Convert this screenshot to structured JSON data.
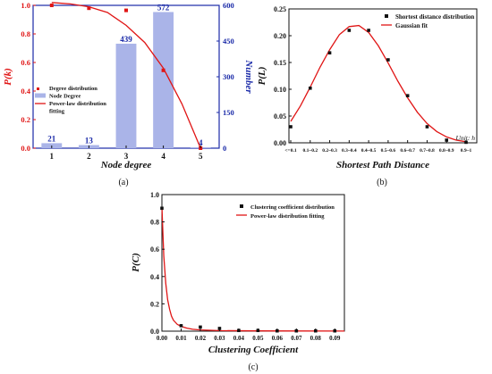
{
  "figure": {
    "panel_labels": [
      "(a)",
      "(b)",
      "(c)"
    ]
  },
  "chart_data": [
    {
      "type": "bar",
      "id": "a",
      "xlabel": "Node degree",
      "ylabel_left": "P(k)",
      "ylabel_right": "Number",
      "categories": [
        "1",
        "2",
        "3",
        "4",
        "5"
      ],
      "ylim_left": [
        0,
        1.0
      ],
      "yticks_left": [
        "0.0",
        "0.2",
        "0.4",
        "0.6",
        "0.8",
        "1.0"
      ],
      "ylim_right": [
        0,
        600
      ],
      "yticks_right": [
        "0",
        "150",
        "300",
        "450",
        "600"
      ],
      "legend": [
        "Degree distribution",
        "Node Degree",
        "Power-law distribution",
        "fitting"
      ],
      "series": [
        {
          "name": "Node Degree",
          "kind": "bar",
          "axis": "right",
          "values": [
            21,
            13,
            439,
            572,
            4
          ],
          "color": "#aab4e8",
          "label_color": "#1a2aa8"
        },
        {
          "name": "Degree distribution",
          "kind": "scatter",
          "axis": "left",
          "x": [
            1,
            2,
            3,
            4,
            5
          ],
          "values": [
            1.0,
            0.98,
            0.965,
            0.545,
            0.0
          ],
          "color": "#e01515"
        },
        {
          "name": "Power-law distribution fitting",
          "kind": "line",
          "axis": "left",
          "x": [
            1,
            1.5,
            2,
            2.5,
            3,
            3.5,
            4,
            4.5,
            5
          ],
          "values": [
            1.02,
            1.01,
            0.99,
            0.95,
            0.86,
            0.74,
            0.56,
            0.31,
            0.0
          ],
          "color": "#e01515"
        }
      ]
    },
    {
      "type": "scatter",
      "id": "b",
      "xlabel": "Shortest Path Distance",
      "ylabel": "P(L)",
      "annotation": "Unit: h",
      "categories": [
        "<=0.1",
        "0.1~0.2",
        "0.2~0.3",
        "0.3~0.4",
        "0.4~0.5",
        "0.5~0.6",
        "0.6~0.7",
        "0.7~0.8",
        "0.8~0.9",
        "0.9~1"
      ],
      "ylim": [
        0,
        0.25
      ],
      "yticks": [
        "0.00",
        "0.05",
        "0.10",
        "0.15",
        "0.20",
        "0.25"
      ],
      "legend": [
        "Shortest distance distribution",
        "Gaussian fit"
      ],
      "series": [
        {
          "name": "Shortest distance distribution",
          "kind": "scatter",
          "values": [
            0.03,
            0.102,
            0.168,
            0.21,
            0.21,
            0.155,
            0.088,
            0.03,
            0.005,
            0.001
          ],
          "color": "#111111"
        },
        {
          "name": "Gaussian fit",
          "kind": "line",
          "x": [
            0,
            0.5,
            1,
            1.5,
            2,
            2.5,
            3,
            3.5,
            4,
            4.5,
            5,
            5.5,
            6,
            6.5,
            7,
            7.5,
            8,
            8.5,
            9
          ],
          "values": [
            0.04,
            0.069,
            0.104,
            0.141,
            0.174,
            0.202,
            0.217,
            0.219,
            0.206,
            0.181,
            0.149,
            0.115,
            0.084,
            0.057,
            0.036,
            0.021,
            0.011,
            0.005,
            0.002
          ],
          "color": "#e01515"
        }
      ]
    },
    {
      "type": "scatter",
      "id": "c",
      "xlabel": "Clustering Coefficient",
      "ylabel": "P(C)",
      "xlim": [
        0,
        0.095
      ],
      "xticks": [
        "0.00",
        "0.01",
        "0.02",
        "0.03",
        "0.04",
        "0.05",
        "0.06",
        "0.07",
        "0.08",
        "0.09"
      ],
      "ylim": [
        0,
        1.0
      ],
      "yticks": [
        "0.0",
        "0.2",
        "0.4",
        "0.6",
        "0.8",
        "1.0"
      ],
      "legend": [
        "Clustering coefficient distribution",
        "Power-law distribution fitting"
      ],
      "series": [
        {
          "name": "Clustering coefficient distribution",
          "kind": "scatter",
          "x": [
            0,
            0.01,
            0.02,
            0.03,
            0.04,
            0.05,
            0.06,
            0.07,
            0.08,
            0.09
          ],
          "values": [
            0.9,
            0.04,
            0.03,
            0.02,
            0.005,
            0.005,
            0.002,
            0.002,
            0.002,
            0.002
          ],
          "color": "#111111"
        },
        {
          "name": "Power-law distribution fitting",
          "kind": "line",
          "x": [
            0,
            0.001,
            0.002,
            0.003,
            0.004,
            0.005,
            0.006,
            0.008,
            0.01,
            0.013,
            0.016,
            0.02,
            0.03,
            0.05,
            0.07,
            0.095
          ],
          "values": [
            0.91,
            0.55,
            0.35,
            0.23,
            0.16,
            0.11,
            0.08,
            0.05,
            0.035,
            0.022,
            0.014,
            0.009,
            0.004,
            0.002,
            0.001,
            0.0005
          ],
          "color": "#e01515"
        }
      ]
    }
  ]
}
